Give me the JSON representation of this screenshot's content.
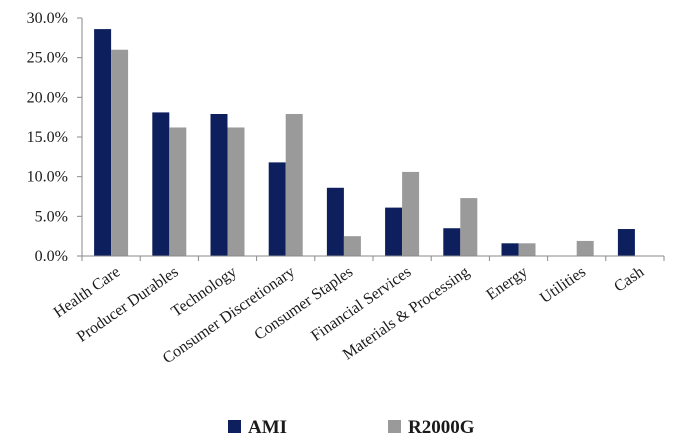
{
  "chart_data": {
    "type": "bar",
    "categories": [
      "Health Care",
      "Producer Durables",
      "Technology",
      "Consumer Discretionary",
      "Consumer Staples",
      "Financial Services",
      "Materials & Processing",
      "Energy",
      "Utilities",
      "Cash"
    ],
    "series": [
      {
        "name": "AMI",
        "color": "#0d1f5c",
        "values": [
          28.6,
          18.1,
          17.9,
          11.8,
          8.6,
          6.1,
          3.5,
          1.6,
          0.0,
          3.4
        ]
      },
      {
        "name": "R2000G",
        "color": "#9a9a9a",
        "values": [
          26.0,
          16.2,
          16.2,
          17.9,
          2.5,
          10.6,
          7.3,
          1.6,
          1.9,
          0.0
        ]
      }
    ],
    "yticks": [
      "0.0%",
      "5.0%",
      "10.0%",
      "15.0%",
      "20.0%",
      "25.0%",
      "30.0%"
    ],
    "ylim": [
      0,
      30
    ],
    "title": "",
    "xlabel": "",
    "ylabel": "",
    "grid": false,
    "legend_position": "bottom"
  }
}
